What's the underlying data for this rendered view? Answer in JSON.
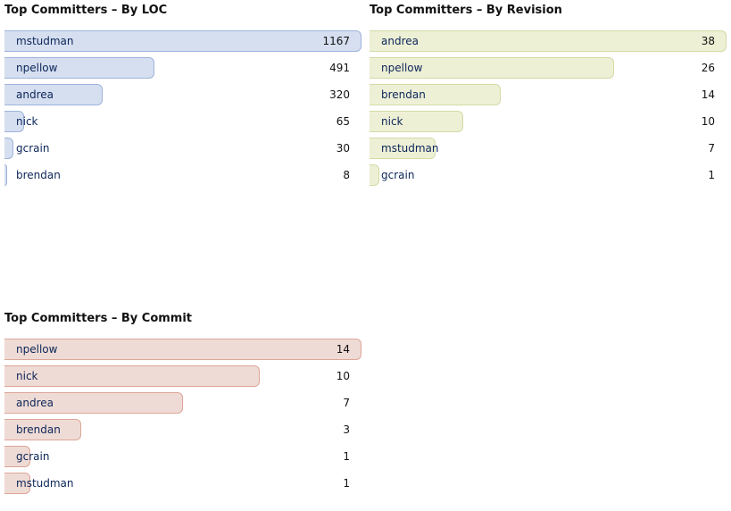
{
  "chart_data": [
    {
      "type": "bar",
      "title": "Top Committers – By LOC",
      "categories": [
        "mstudman",
        "npellow",
        "andrea",
        "nick",
        "gcrain",
        "brendan"
      ],
      "values": [
        1167,
        491,
        320,
        65,
        30,
        8
      ],
      "colors": {
        "fill": "#d6dff0",
        "stroke": "#9eb3dc"
      }
    },
    {
      "type": "bar",
      "title": "Top Committers – By Revision",
      "categories": [
        "andrea",
        "npellow",
        "brendan",
        "nick",
        "mstudman",
        "gcrain"
      ],
      "values": [
        38,
        26,
        14,
        10,
        7,
        1
      ],
      "colors": {
        "fill": "#eef0d6",
        "stroke": "#d3daa4"
      }
    },
    {
      "type": "bar",
      "title": "Top Committers – By Commit",
      "categories": [
        "npellow",
        "nick",
        "andrea",
        "brendan",
        "gcrain",
        "mstudman"
      ],
      "values": [
        14,
        10,
        7,
        3,
        1,
        1
      ],
      "colors": {
        "fill": "#efdbd5",
        "stroke": "#dda699"
      }
    }
  ]
}
